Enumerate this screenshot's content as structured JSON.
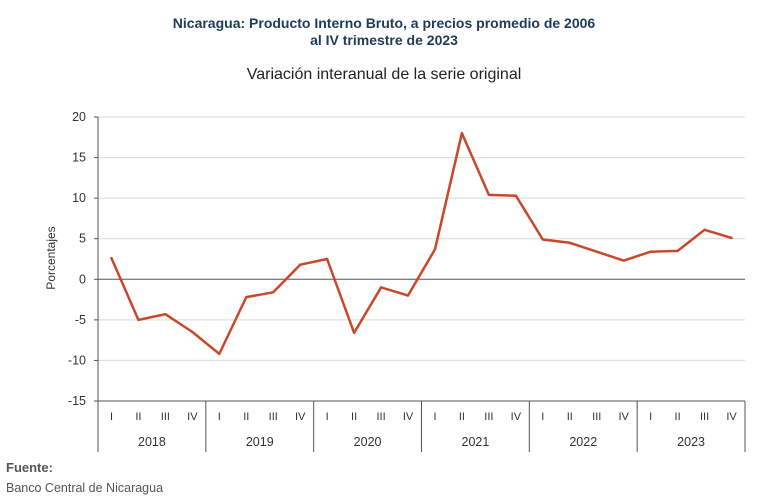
{
  "header": {
    "title_line1": "Nicaragua: Producto Interno Bruto, a precios promedio de 2006",
    "title_line2": "al IV trimestre de 2023",
    "subtitle": "Variación interanual de la serie original"
  },
  "source": {
    "label": "Fuente:",
    "text": "Banco Central de Nicaragua"
  },
  "chart_data": {
    "type": "line",
    "title": "Nicaragua: Producto Interno Bruto, a precios promedio de 2006 al IV trimestre de 2023",
    "subtitle": "Variación interanual de la serie original",
    "ylabel": "Porcentajes",
    "xlabel": "",
    "ylim": [
      -15,
      20
    ],
    "yticks": [
      20,
      15,
      10,
      5,
      0,
      -5,
      -10,
      -15
    ],
    "quarters": [
      "I",
      "II",
      "III",
      "IV"
    ],
    "years": [
      "2018",
      "2019",
      "2020",
      "2021",
      "2022",
      "2023"
    ],
    "categories": [
      "2018-I",
      "2018-II",
      "2018-III",
      "2018-IV",
      "2019-I",
      "2019-II",
      "2019-III",
      "2019-IV",
      "2020-I",
      "2020-II",
      "2020-III",
      "2020-IV",
      "2021-I",
      "2021-II",
      "2021-III",
      "2021-IV",
      "2022-I",
      "2022-II",
      "2022-III",
      "2022-IV",
      "2023-I",
      "2023-II",
      "2023-III",
      "2023-IV"
    ],
    "values": [
      2.6,
      -5.0,
      -4.3,
      -6.5,
      -9.2,
      -2.2,
      -1.6,
      1.8,
      2.5,
      -6.6,
      -1.0,
      -2.0,
      3.7,
      18.0,
      10.4,
      10.3,
      4.9,
      4.5,
      3.4,
      2.3,
      3.4,
      3.5,
      6.1,
      5.1
    ],
    "grid": true,
    "line_color": "#c9472a",
    "axis_color": "#555555",
    "grid_color": "#d9d9d9"
  }
}
